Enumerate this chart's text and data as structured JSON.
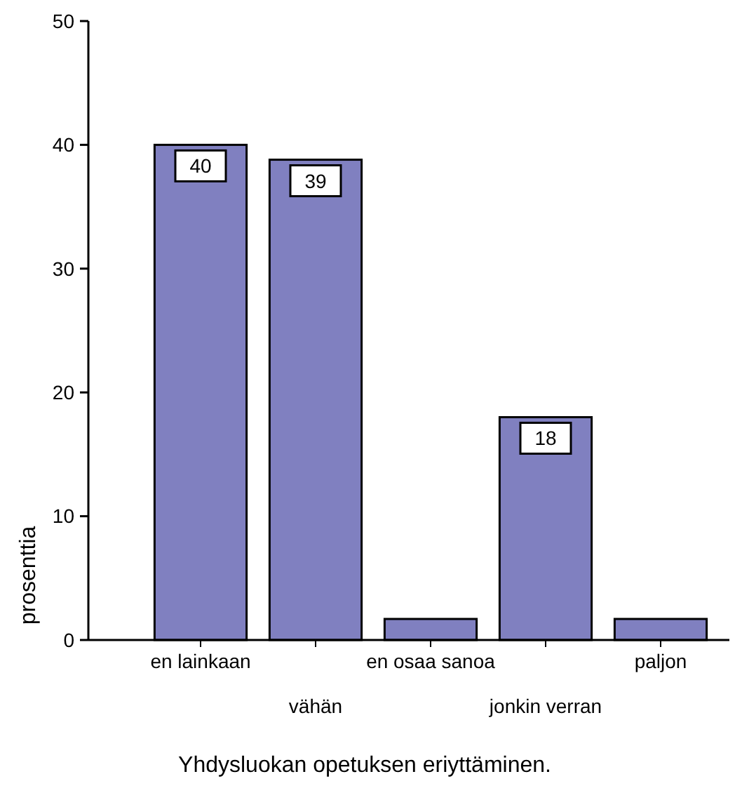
{
  "chart_data": {
    "type": "bar",
    "xlabel": "Yhdysluokan opetuksen eriyttäminen.",
    "ylabel": "prosenttia",
    "categories": [
      "en lainkaan",
      "vähän",
      "en osaa sanoa",
      "jonkin verran",
      "paljon"
    ],
    "values": [
      40,
      38.8,
      1.7,
      18,
      1.7
    ],
    "value_labels": [
      "40",
      "39",
      null,
      "18",
      null
    ],
    "color": "#8080c0",
    "ylim": [
      0,
      50
    ],
    "yticks": [
      0,
      10,
      20,
      30,
      40,
      50
    ],
    "grid": false
  }
}
